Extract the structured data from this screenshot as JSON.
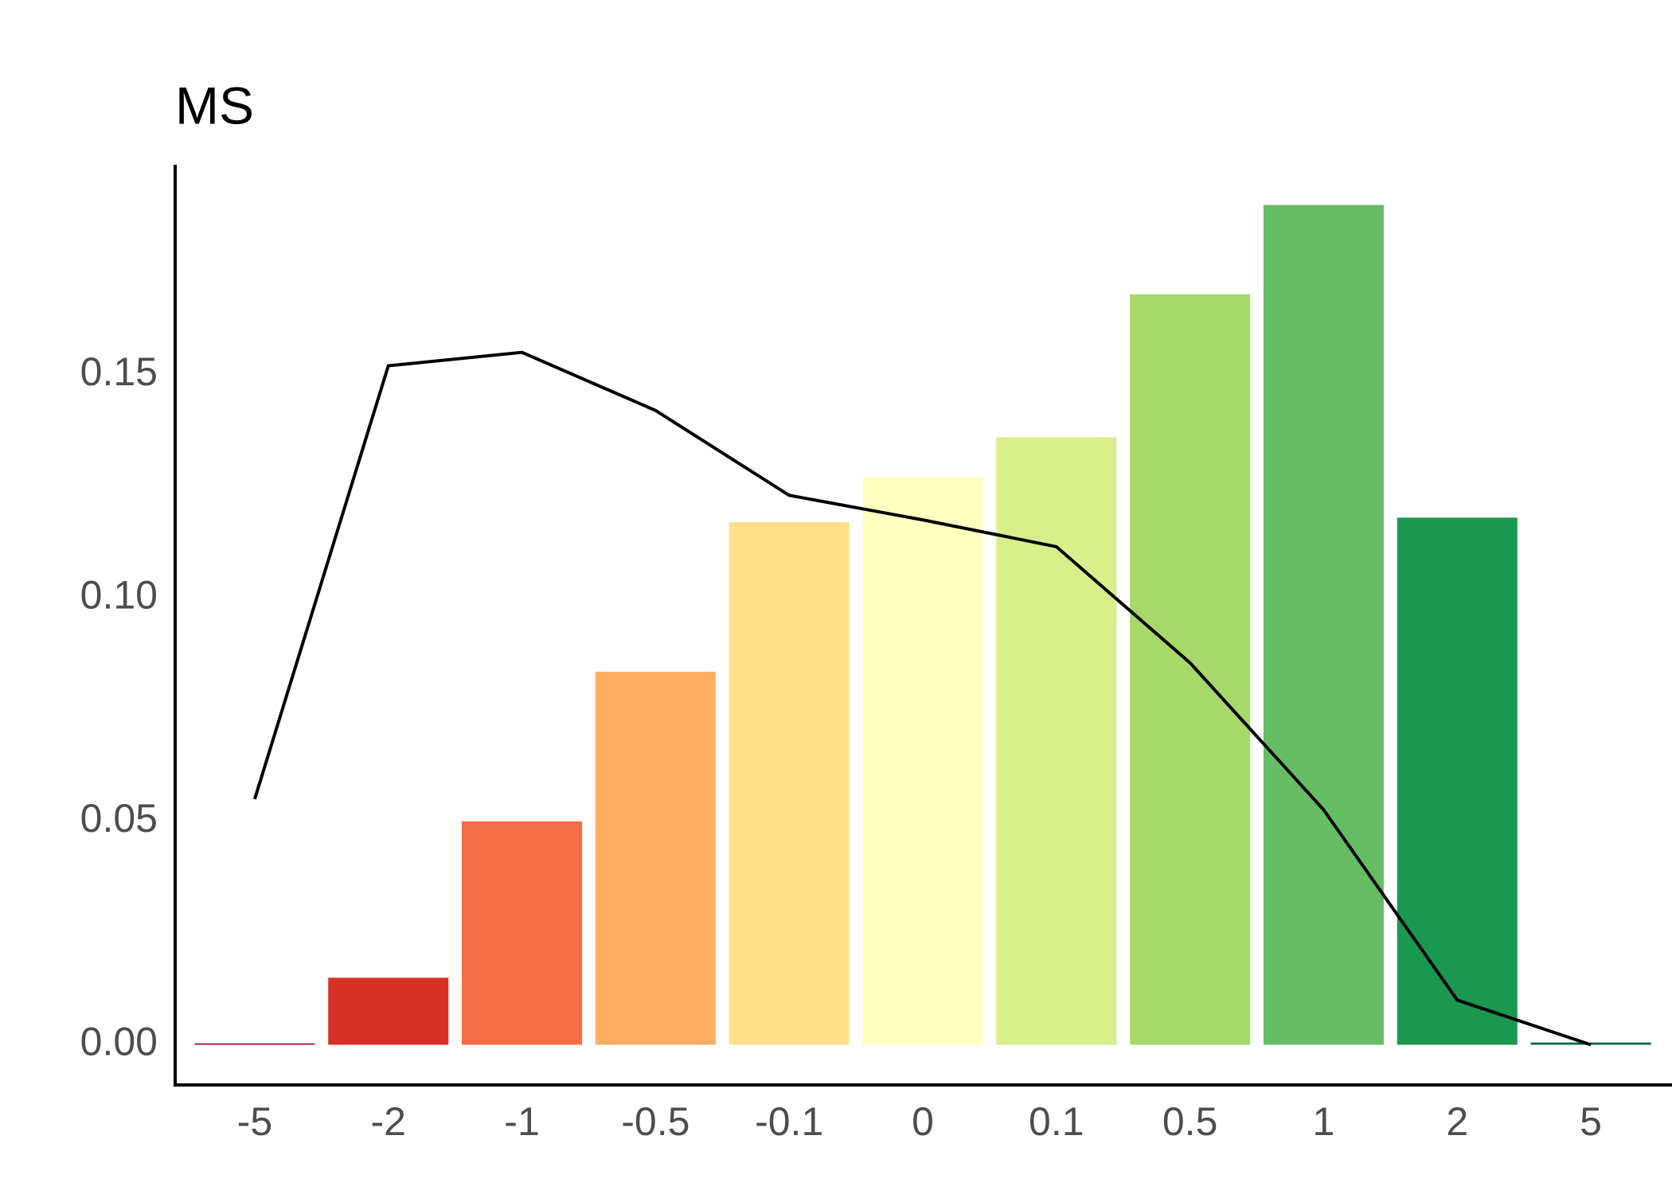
{
  "chart_data": {
    "type": "bar",
    "title": "MS",
    "categories": [
      "-5",
      "-2",
      "-1",
      "-0.5",
      "-0.1",
      "0",
      "0.1",
      "0.5",
      "1",
      "2",
      "5"
    ],
    "series": [
      {
        "type": "bar",
        "colors": [
          "#a50026",
          "#d73027",
          "#f46d43",
          "#fdae61",
          "#fee08b",
          "#ffffbf",
          "#d9ef8b",
          "#a6d96a",
          "#66bd63",
          "#1a9850",
          "#006837"
        ],
        "values": [
          0.0003,
          0.015,
          0.05,
          0.0835,
          0.117,
          0.127,
          0.136,
          0.168,
          0.188,
          0.118,
          0.0005
        ]
      },
      {
        "type": "line",
        "color": "#000000",
        "values": [
          0.055,
          0.152,
          0.155,
          0.142,
          0.123,
          0.1175,
          0.1115,
          0.0855,
          0.0526,
          0.01,
          0
        ]
      }
    ],
    "ylim": [
      -0.009,
      0.197
    ],
    "yticks": [
      {
        "value": 0,
        "label": "0.00"
      },
      {
        "value": 0.05,
        "label": "0.05"
      },
      {
        "value": 0.1,
        "label": "0.10"
      },
      {
        "value": 0.15,
        "label": "0.15"
      }
    ],
    "grid": false
  }
}
